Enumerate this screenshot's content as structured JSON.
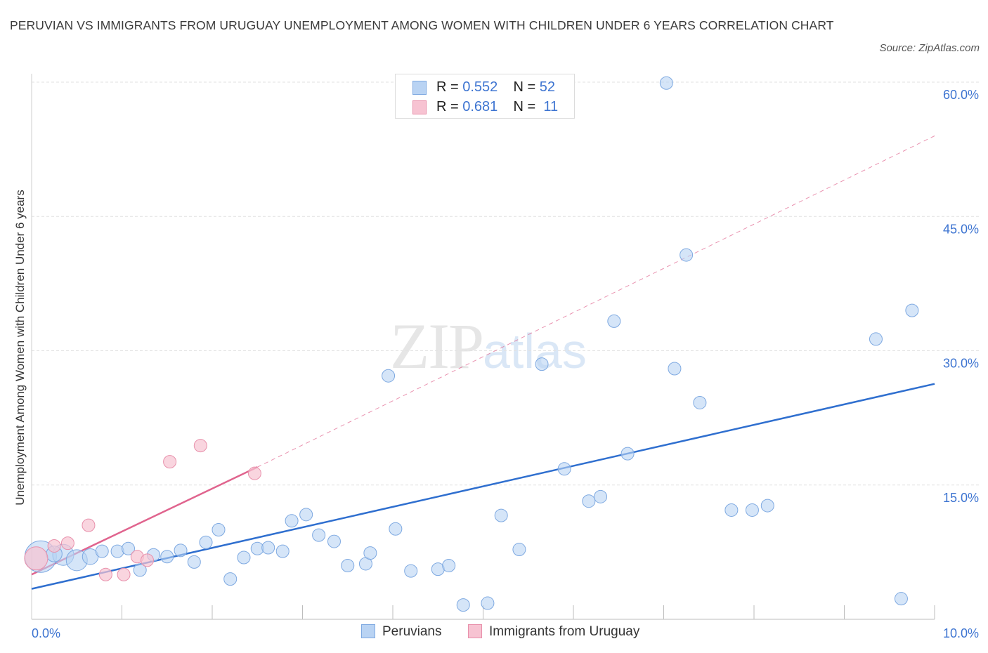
{
  "title": "PERUVIAN VS IMMIGRANTS FROM URUGUAY UNEMPLOYMENT AMONG WOMEN WITH CHILDREN UNDER 6 YEARS CORRELATION CHART",
  "source": "Source: ZipAtlas.com",
  "watermark": {
    "zip": "ZIP",
    "atlas": "atlas"
  },
  "legend": {
    "rows": [
      {
        "r_label": "R =",
        "r_value": "0.552",
        "n_label": "N =",
        "n_value": "52"
      },
      {
        "r_label": "R =",
        "r_value": "0.681",
        "n_label": "N =",
        "n_value": "11"
      }
    ]
  },
  "bottom_legend": {
    "peruvians": "Peruvians",
    "uruguay": "Immigrants from Uruguay"
  },
  "colors": {
    "blue_fill": "#b9d3f3",
    "blue_stroke": "#7ea9e1",
    "blue_line": "#2f6fcf",
    "pink_fill": "#f7c3d2",
    "pink_stroke": "#e890ab",
    "pink_line": "#e0648e",
    "tick_label": "#3d74d1",
    "grid": "#e2e2e2"
  },
  "chart_data": {
    "type": "scatter",
    "title": "PERUVIAN VS IMMIGRANTS FROM URUGUAY UNEMPLOYMENT AMONG WOMEN WITH CHILDREN UNDER 6 YEARS CORRELATION CHART",
    "xlabel": "",
    "ylabel": "Unemployment Among Women with Children Under 6 years",
    "xlim": [
      0,
      10
    ],
    "ylim": [
      0,
      60
    ],
    "x_tick_labels": [
      {
        "value": 0,
        "label": "0.0%"
      },
      {
        "value": 10,
        "label": "10.0%"
      }
    ],
    "y_tick_labels": [
      {
        "value": 15,
        "label": "15.0%"
      },
      {
        "value": 30,
        "label": "30.0%"
      },
      {
        "value": 45,
        "label": "45.0%"
      },
      {
        "value": 60,
        "label": "60.0%"
      }
    ],
    "series": [
      {
        "name": "Peruvians",
        "color": "#b9d3f3",
        "R": 0.552,
        "N": 52,
        "points": [
          {
            "x": 0.1,
            "y": 7.0,
            "s": 3
          },
          {
            "x": 0.35,
            "y": 7.2,
            "s": 2
          },
          {
            "x": 0.5,
            "y": 6.6,
            "s": 2
          },
          {
            "x": 0.65,
            "y": 7.0,
            "s": 1.5
          },
          {
            "x": 0.78,
            "y": 7.6,
            "s": 1.2
          },
          {
            "x": 0.95,
            "y": 7.6,
            "s": 1.2
          },
          {
            "x": 1.07,
            "y": 7.9,
            "s": 1.2
          },
          {
            "x": 1.2,
            "y": 5.5,
            "s": 1.2
          },
          {
            "x": 1.35,
            "y": 7.2,
            "s": 1.2
          },
          {
            "x": 1.5,
            "y": 7.0,
            "s": 1.2
          },
          {
            "x": 1.65,
            "y": 7.7,
            "s": 1.2
          },
          {
            "x": 1.8,
            "y": 6.4,
            "s": 1.2
          },
          {
            "x": 1.93,
            "y": 8.6,
            "s": 1.2
          },
          {
            "x": 2.07,
            "y": 10.0,
            "s": 1.2
          },
          {
            "x": 2.2,
            "y": 4.5,
            "s": 1.2
          },
          {
            "x": 2.35,
            "y": 6.9,
            "s": 1.2
          },
          {
            "x": 2.5,
            "y": 7.9,
            "s": 1.2
          },
          {
            "x": 2.62,
            "y": 8.0,
            "s": 1.2
          },
          {
            "x": 2.78,
            "y": 7.6,
            "s": 1.2
          },
          {
            "x": 2.88,
            "y": 11.0,
            "s": 1.2
          },
          {
            "x": 3.04,
            "y": 11.7,
            "s": 1.2
          },
          {
            "x": 3.18,
            "y": 9.4,
            "s": 1.2
          },
          {
            "x": 3.35,
            "y": 8.7,
            "s": 1.2
          },
          {
            "x": 3.5,
            "y": 6.0,
            "s": 1.2
          },
          {
            "x": 3.7,
            "y": 6.2,
            "s": 1.2
          },
          {
            "x": 3.75,
            "y": 7.4,
            "s": 1.2
          },
          {
            "x": 3.95,
            "y": 27.2,
            "s": 1.2
          },
          {
            "x": 4.03,
            "y": 10.1,
            "s": 1.2
          },
          {
            "x": 4.2,
            "y": 5.4,
            "s": 1.2
          },
          {
            "x": 4.5,
            "y": 5.6,
            "s": 1.2
          },
          {
            "x": 4.62,
            "y": 6.0,
            "s": 1.2
          },
          {
            "x": 4.78,
            "y": 1.6,
            "s": 1.2
          },
          {
            "x": 5.05,
            "y": 1.8,
            "s": 1.2
          },
          {
            "x": 5.2,
            "y": 11.6,
            "s": 1.2
          },
          {
            "x": 5.4,
            "y": 7.8,
            "s": 1.2
          },
          {
            "x": 5.65,
            "y": 28.5,
            "s": 1.2
          },
          {
            "x": 5.9,
            "y": 16.8,
            "s": 1.2
          },
          {
            "x": 6.17,
            "y": 13.2,
            "s": 1.2
          },
          {
            "x": 6.3,
            "y": 13.7,
            "s": 1.2
          },
          {
            "x": 6.45,
            "y": 33.3,
            "s": 1.2
          },
          {
            "x": 6.6,
            "y": 18.5,
            "s": 1.2
          },
          {
            "x": 7.03,
            "y": 59.9,
            "s": 1.2
          },
          {
            "x": 7.25,
            "y": 40.7,
            "s": 1.2
          },
          {
            "x": 7.12,
            "y": 28.0,
            "s": 1.2
          },
          {
            "x": 7.4,
            "y": 24.2,
            "s": 1.2
          },
          {
            "x": 7.75,
            "y": 12.2,
            "s": 1.2
          },
          {
            "x": 7.98,
            "y": 12.2,
            "s": 1.2
          },
          {
            "x": 8.15,
            "y": 12.7,
            "s": 1.2
          },
          {
            "x": 9.35,
            "y": 31.3,
            "s": 1.2
          },
          {
            "x": 9.75,
            "y": 34.5,
            "s": 1.2
          },
          {
            "x": 9.63,
            "y": 2.3,
            "s": 1.2
          },
          {
            "x": 0.25,
            "y": 7.3,
            "s": 1.5
          }
        ],
        "trend": {
          "x0": 0,
          "y0": 3.4,
          "x1": 10,
          "y1": 26.3
        }
      },
      {
        "name": "Immigrants from Uruguay",
        "color": "#f7c3d2",
        "R": 0.681,
        "N": 11,
        "points": [
          {
            "x": 0.05,
            "y": 6.8,
            "s": 2.2
          },
          {
            "x": 0.25,
            "y": 8.2,
            "s": 1.2
          },
          {
            "x": 0.4,
            "y": 8.5,
            "s": 1.2
          },
          {
            "x": 0.63,
            "y": 10.5,
            "s": 1.2
          },
          {
            "x": 0.82,
            "y": 5.0,
            "s": 1.2
          },
          {
            "x": 1.02,
            "y": 5.0,
            "s": 1.2
          },
          {
            "x": 1.17,
            "y": 7.0,
            "s": 1.2
          },
          {
            "x": 1.28,
            "y": 6.6,
            "s": 1.2
          },
          {
            "x": 1.53,
            "y": 17.6,
            "s": 1.2
          },
          {
            "x": 1.87,
            "y": 19.4,
            "s": 1.2
          },
          {
            "x": 2.47,
            "y": 16.3,
            "s": 1.2
          }
        ],
        "trend": {
          "x0": 0,
          "y0": 5.0,
          "x1": 2.5,
          "y1": 17.0
        },
        "trend_extended": {
          "x0": 2.5,
          "y0": 17.0,
          "x1": 10,
          "y1": 54.0
        }
      }
    ]
  }
}
